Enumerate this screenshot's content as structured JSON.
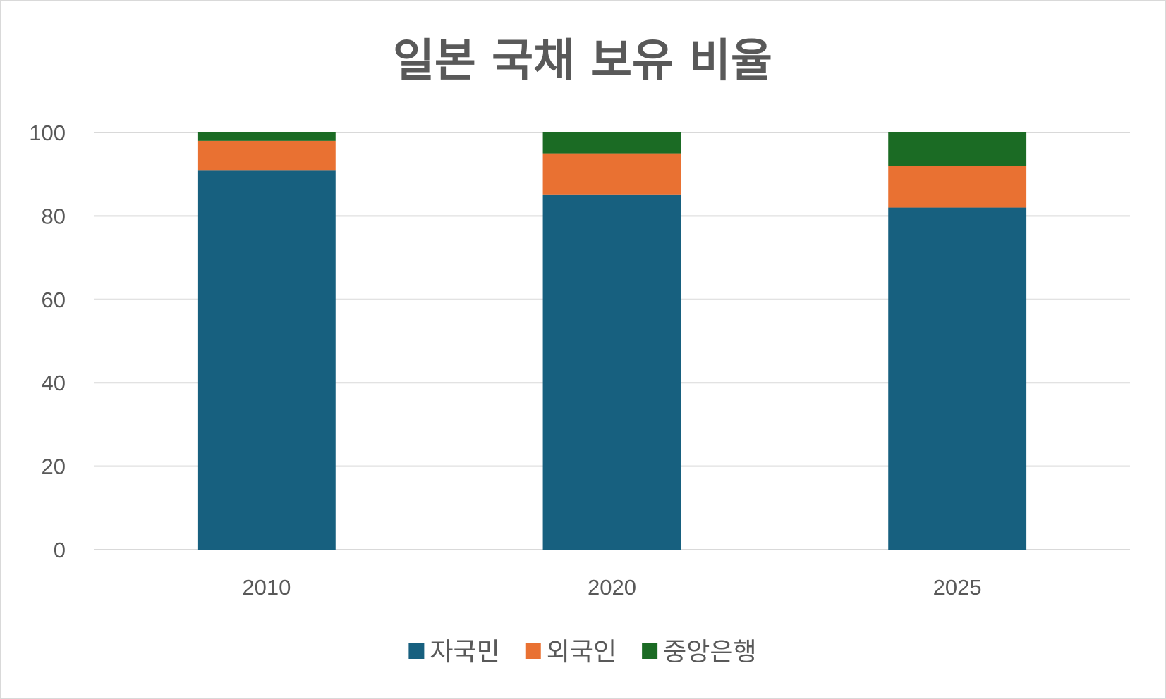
{
  "chart_data": {
    "type": "bar",
    "stacked": true,
    "title": "일본 국채 보유 비율",
    "categories": [
      "2010",
      "2020",
      "2025"
    ],
    "series": [
      {
        "name": "자국민",
        "values": [
          91,
          85,
          82
        ],
        "color": "#17607f"
      },
      {
        "name": "외국인",
        "values": [
          7,
          10,
          10
        ],
        "color": "#e97132"
      },
      {
        "name": "중앙은행",
        "values": [
          2,
          5,
          8
        ],
        "color": "#1b6b24"
      }
    ],
    "ylim": [
      0,
      100
    ],
    "yticks": [
      "0",
      "20",
      "40",
      "60",
      "80",
      "100"
    ],
    "grid": true,
    "legend": "bottom"
  }
}
